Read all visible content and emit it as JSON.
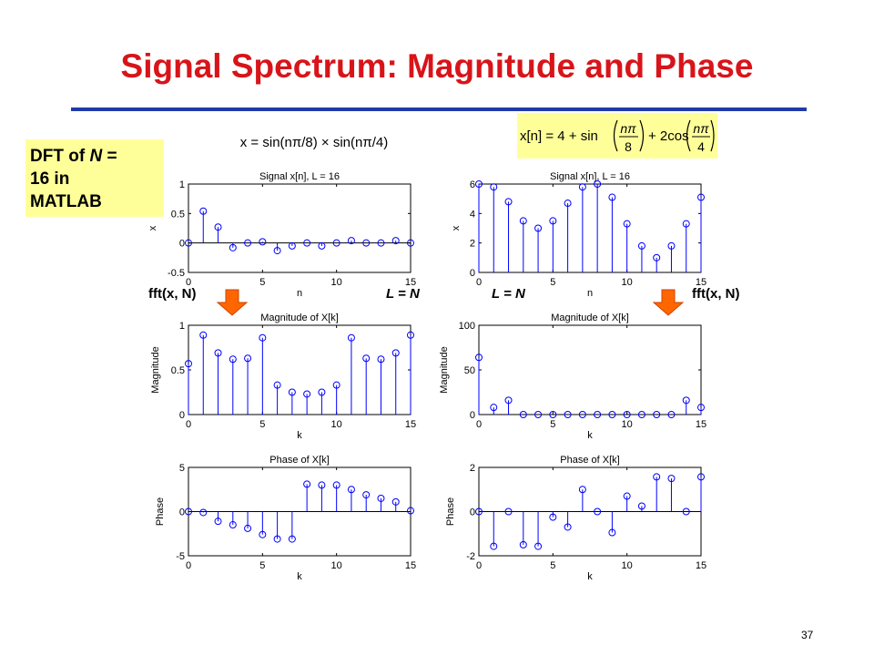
{
  "slide": {
    "title": "Signal Spectrum: Magnitude and Phase",
    "page_number": "37",
    "dft_box": {
      "line1_prefix": "DFT of ",
      "line1_var": "N",
      "line1_suffix": " =",
      "line2": "16 in",
      "line3": "MATLAB"
    },
    "caption": {
      "p1": "x = sin(n",
      "p2": "π",
      "p3": "/8) × sin(n",
      "p4": "π",
      "p5": "/4)"
    },
    "formula": {
      "lhs": "x[n] = 4 + sin",
      "mid": "+ 2cos",
      "num": "nπ",
      "den1": "8",
      "den2": "4"
    },
    "labels": {
      "fft_left": "fft(x, N)",
      "ln_left": "L = N",
      "ln_right": "L = N",
      "fft_right": "fft(x, N)"
    },
    "colors": {
      "title": "#d8141a",
      "rule": "#1f3aa8",
      "highlight": "#ffff99",
      "stem": "#0000ff",
      "arrow": "#ff6600"
    }
  },
  "chart_data": [
    {
      "type": "stem",
      "title": "Signal x[n], L = 16",
      "xlabel": "n",
      "ylabel": "x",
      "xlim": [
        0,
        15
      ],
      "ylim": [
        -0.5,
        1
      ],
      "xticks": [
        0,
        5,
        10,
        15
      ],
      "xtick_labels": [
        "0",
        "5",
        "10",
        "15"
      ],
      "yticks": [
        -0.5,
        0,
        0.5,
        1
      ],
      "ytick_labels": [
        "-0.5",
        "0",
        "0.5",
        "1"
      ],
      "x": [
        0,
        1,
        2,
        3,
        4,
        5,
        6,
        7,
        8,
        9,
        10,
        11,
        12,
        13,
        14,
        15
      ],
      "y": [
        0,
        0.54,
        0.27,
        -0.08,
        0,
        0.02,
        -0.13,
        -0.05,
        0,
        -0.05,
        0,
        0.04,
        0,
        0,
        0.04,
        0
      ]
    },
    {
      "type": "stem",
      "title": "Signal x[n], L = 16",
      "xlabel": "n",
      "ylabel": "x",
      "xlim": [
        0,
        15
      ],
      "ylim": [
        0,
        6
      ],
      "xticks": [
        0,
        5,
        10,
        15
      ],
      "xtick_labels": [
        "0",
        "5",
        "10",
        "15"
      ],
      "yticks": [
        0,
        2,
        4,
        6
      ],
      "ytick_labels": [
        "0",
        "2",
        "4",
        "6"
      ],
      "x": [
        0,
        1,
        2,
        3,
        4,
        5,
        6,
        7,
        8,
        9,
        10,
        11,
        12,
        13,
        14,
        15
      ],
      "y": [
        6,
        5.8,
        4.8,
        3.5,
        3,
        3.5,
        4.7,
        5.8,
        6,
        5.1,
        3.3,
        1.8,
        1,
        1.8,
        3.3,
        5.1
      ]
    },
    {
      "type": "stem",
      "title": "Magnitude of X[k]",
      "xlabel": "k",
      "ylabel": "Magnitude",
      "xlim": [
        0,
        15
      ],
      "ylim": [
        0,
        1
      ],
      "xticks": [
        0,
        5,
        10,
        15
      ],
      "xtick_labels": [
        "0",
        "5",
        "10",
        "15"
      ],
      "yticks": [
        0,
        0.5,
        1
      ],
      "ytick_labels": [
        "0",
        "0.5",
        "1"
      ],
      "x": [
        0,
        1,
        2,
        3,
        4,
        5,
        6,
        7,
        8,
        9,
        10,
        11,
        12,
        13,
        14,
        15
      ],
      "y": [
        0.57,
        0.89,
        0.69,
        0.62,
        0.63,
        0.86,
        0.33,
        0.25,
        0.23,
        0.25,
        0.33,
        0.86,
        0.63,
        0.62,
        0.69,
        0.89
      ]
    },
    {
      "type": "stem",
      "title": "Magnitude of X[k]",
      "xlabel": "k",
      "ylabel": "Magnitude",
      "xlim": [
        0,
        15
      ],
      "ylim": [
        0,
        100
      ],
      "xticks": [
        0,
        5,
        10,
        15
      ],
      "xtick_labels": [
        "0",
        "5",
        "10",
        "15"
      ],
      "yticks": [
        0,
        50,
        100
      ],
      "ytick_labels": [
        "0",
        "50",
        "100"
      ],
      "x": [
        0,
        1,
        2,
        3,
        4,
        5,
        6,
        7,
        8,
        9,
        10,
        11,
        12,
        13,
        14,
        15
      ],
      "y": [
        64,
        8,
        16,
        0,
        0,
        0,
        0,
        0,
        0,
        0,
        0,
        0,
        0,
        0,
        16,
        8
      ]
    },
    {
      "type": "stem",
      "title": "Phase of X[k]",
      "xlabel": "k",
      "ylabel": "Phase",
      "xlim": [
        0,
        15
      ],
      "ylim": [
        -5,
        5
      ],
      "xticks": [
        0,
        5,
        10,
        15
      ],
      "xtick_labels": [
        "0",
        "5",
        "10",
        "15"
      ],
      "yticks": [
        -5,
        0,
        5
      ],
      "ytick_labels": [
        "-5",
        "0",
        "5"
      ],
      "x": [
        0,
        1,
        2,
        3,
        4,
        5,
        6,
        7,
        8,
        9,
        10,
        11,
        12,
        13,
        14,
        15
      ],
      "y": [
        0,
        -0.1,
        -1.1,
        -1.5,
        -1.9,
        -2.6,
        -3.1,
        -3.1,
        3.1,
        3.0,
        3.0,
        2.5,
        1.9,
        1.5,
        1.1,
        0.1
      ]
    },
    {
      "type": "stem",
      "title": "Phase of X[k]",
      "xlabel": "k",
      "ylabel": "Phase",
      "xlim": [
        0,
        15
      ],
      "ylim": [
        -2,
        2
      ],
      "xticks": [
        0,
        5,
        10,
        15
      ],
      "xtick_labels": [
        "0",
        "5",
        "10",
        "15"
      ],
      "yticks": [
        -2,
        0,
        2
      ],
      "ytick_labels": [
        "-2",
        "0",
        "2"
      ],
      "x": [
        0,
        1,
        2,
        3,
        4,
        5,
        6,
        7,
        8,
        9,
        10,
        11,
        12,
        13,
        14,
        15
      ],
      "y": [
        0,
        -1.57,
        0,
        -1.5,
        -1.57,
        -0.25,
        -0.7,
        1.0,
        0,
        -0.95,
        0.7,
        0.25,
        1.57,
        1.5,
        0,
        1.57
      ]
    }
  ]
}
